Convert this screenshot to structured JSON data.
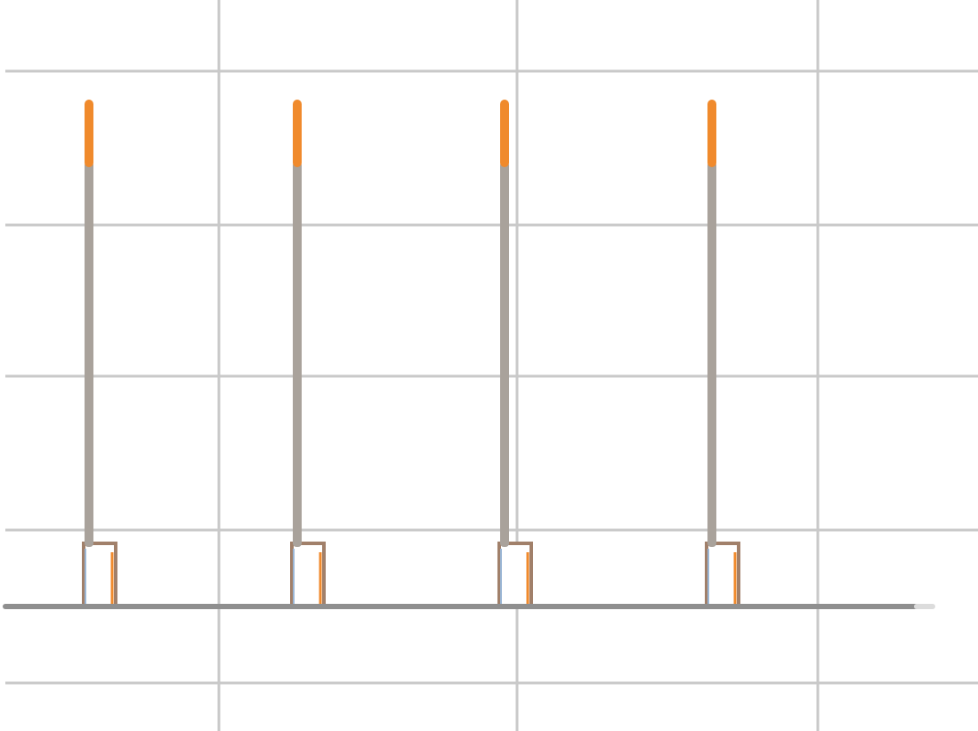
{
  "diagram": {
    "kind": "periodic pulse train",
    "pulse_count": 4,
    "grid": true,
    "colors": {
      "background": "#ffffff",
      "grid": "#c9c9c9",
      "baseline": "#8f8f8f",
      "pulse_stem": "#a9a29b",
      "pulse_tip": "#f08a2c",
      "pulse_box_stroke": "#a1806a",
      "pulse_box_fill": "#ffffff",
      "pulse_box_accent_left": "#9bb7d6",
      "pulse_box_accent_right": "#f08a2c"
    }
  }
}
